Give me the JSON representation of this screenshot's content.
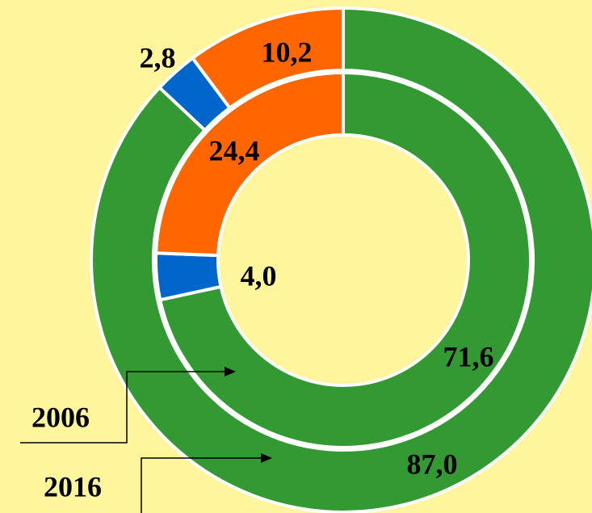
{
  "chart_data": {
    "type": "donut",
    "colors": [
      "#339933",
      "#0066cc",
      "#ff6600"
    ],
    "series": [
      {
        "name": "2006",
        "values": [
          71.6,
          4.0,
          24.4
        ],
        "value_labels": [
          "71,6",
          "4,0",
          "24,4"
        ]
      },
      {
        "name": "2016",
        "values": [
          87.0,
          2.8,
          10.2
        ],
        "value_labels": [
          "87,0",
          "2,8",
          "10,2"
        ]
      }
    ]
  }
}
